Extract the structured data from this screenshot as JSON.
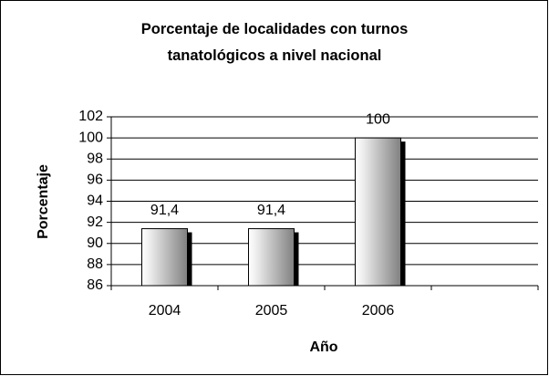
{
  "chart_data": {
    "type": "bar",
    "title": "Porcentaje de localidades con turnos tanatológicos a nivel nacional",
    "x_label": "Año",
    "y_label": "Porcentaje",
    "categories": [
      "2004",
      "2005",
      "2006",
      null
    ],
    "values": [
      91.4,
      91.4,
      100,
      null
    ],
    "value_labels": [
      "91,4",
      "91,4",
      "100",
      null
    ],
    "color": "#c0c0c0",
    "ylim": [
      86,
      102
    ],
    "yticks": [
      86,
      88,
      90,
      92,
      94,
      96,
      98,
      100,
      102
    ],
    "grid": true
  }
}
